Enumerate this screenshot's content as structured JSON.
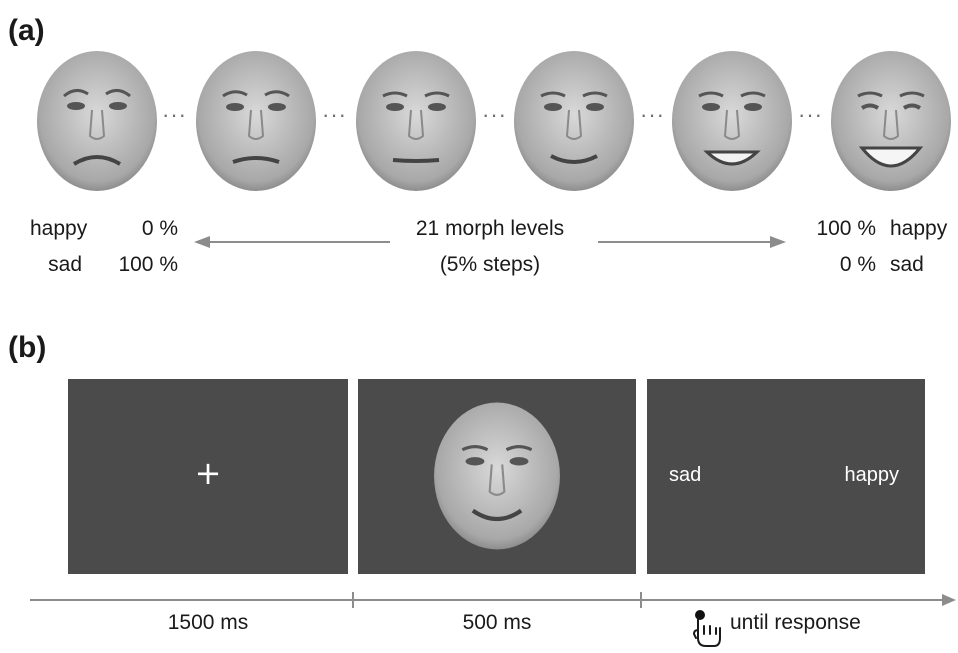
{
  "panel_a": {
    "label": "(a)",
    "left_scale": {
      "row1_name": "happy",
      "row1_value": "0 %",
      "row2_name": "sad",
      "row2_value": "100 %"
    },
    "center_line1": "21 morph levels",
    "center_line2": "(5% steps)",
    "right_scale": {
      "row1_value": "100 %",
      "row1_name": "happy",
      "row2_value": "0 %",
      "row2_name": "sad"
    },
    "ellipsis": "···"
  },
  "panel_b": {
    "label": "(b)",
    "fixation_symbol": "+",
    "response_left": "sad",
    "response_right": "happy",
    "durations": [
      "1500 ms",
      "500 ms",
      "until response"
    ]
  }
}
